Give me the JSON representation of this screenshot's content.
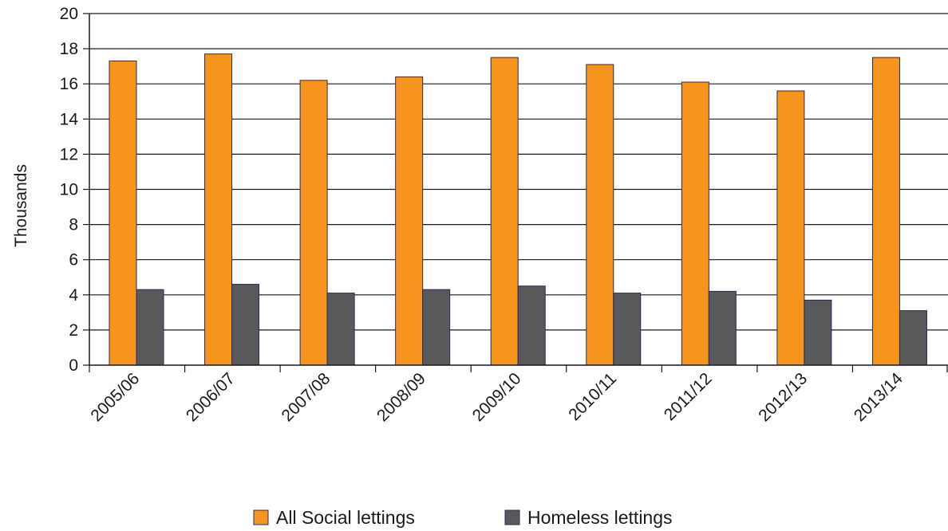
{
  "chart_data": {
    "type": "bar",
    "title": "",
    "xlabel": "",
    "ylabel": "Thousands",
    "ylim": [
      0,
      20
    ],
    "yticks": [
      "0",
      "2",
      "4",
      "6",
      "8",
      "10",
      "12",
      "14",
      "16",
      "18",
      "20"
    ],
    "categories": [
      "2005/06",
      "2006/07",
      "2007/08",
      "2008/09",
      "2009/10",
      "2010/11",
      "2011/12",
      "2012/13",
      "2013/14"
    ],
    "series": [
      {
        "name": "All Social lettings",
        "color": "#F7941E",
        "values": [
          17.3,
          17.7,
          16.2,
          16.4,
          17.5,
          17.1,
          16.1,
          15.6,
          17.5
        ]
      },
      {
        "name": "Homeless lettings",
        "color": "#58595B",
        "values": [
          4.3,
          4.6,
          4.1,
          4.3,
          4.5,
          4.1,
          4.2,
          3.7,
          3.1
        ]
      }
    ],
    "grid": true,
    "legend": "bottom"
  }
}
